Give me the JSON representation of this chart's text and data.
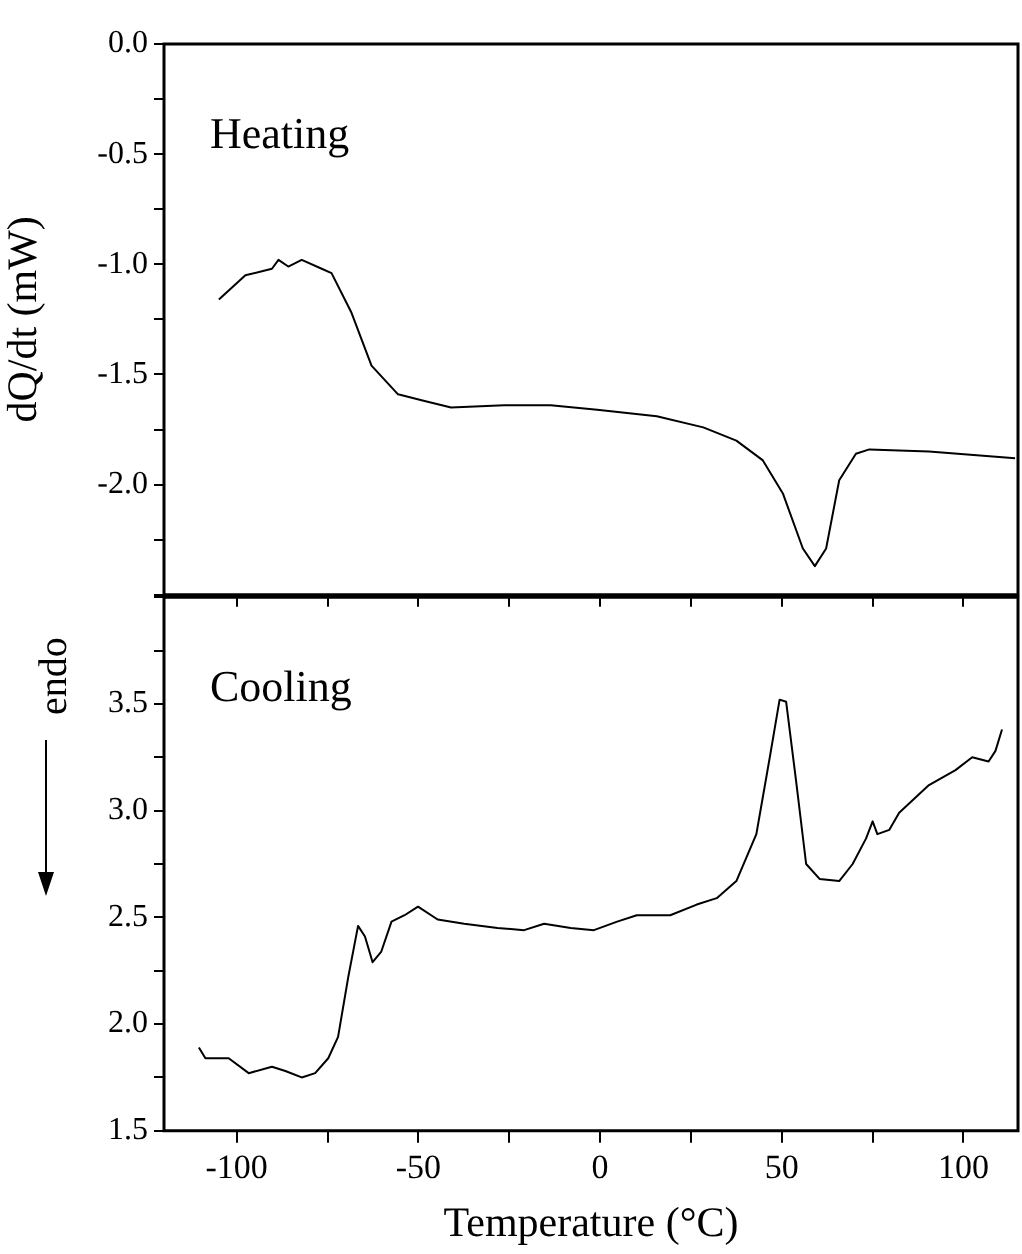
{
  "chart_data": [
    {
      "type": "line",
      "ylabel": "dQ/dt (mW)",
      "annotations": [
        "Heating"
      ],
      "x": [
        -104.9,
        -97.6,
        -90.3,
        -88.5,
        -85.8,
        -82.1,
        -76.6,
        -73.9,
        -68.4,
        -62.9,
        -55.6,
        -48.3,
        -41.0,
        -26.4,
        -13.6,
        -0.8,
        15.6,
        28.4,
        37.5,
        44.8,
        50.3,
        55.8,
        59.1,
        62.2,
        65.8,
        70.4,
        74.1,
        90.5,
        114.2
      ],
      "series": [
        {
          "color": "#000000",
          "values": [
            -1.16,
            -1.05,
            -1.02,
            -0.98,
            -1.01,
            -0.98,
            -1.02,
            -1.04,
            -1.22,
            -1.46,
            -1.59,
            -1.62,
            -1.65,
            -1.64,
            -1.64,
            -1.66,
            -1.69,
            -1.74,
            -1.8,
            -1.89,
            -2.04,
            -2.29,
            -2.37,
            -2.29,
            -1.98,
            -1.86,
            -1.84,
            -1.85,
            -1.88
          ]
        }
      ],
      "xlim": [
        -120,
        115
      ],
      "xticks": [
        -100,
        {
          "value": -75,
          "label": null
        },
        -50,
        {
          "value": -25,
          "label": null
        },
        0,
        {
          "value": 25,
          "label": null
        },
        50,
        {
          "value": 75,
          "label": null
        },
        100
      ],
      "ylim": [
        -2.5,
        0
      ],
      "yticks": [
        {
          "value": -2.5,
          "label": null
        },
        {
          "value": -2.25,
          "label": null
        },
        {
          "value": -2,
          "label": "-2.0"
        },
        {
          "value": -1.75,
          "label": null
        },
        {
          "value": -1.5,
          "label": "-1.5"
        },
        {
          "value": -1.25,
          "label": null
        },
        {
          "value": -1,
          "label": "-1.0"
        },
        {
          "value": -0.75,
          "label": null
        },
        {
          "value": -0.5,
          "label": "-0.5"
        },
        {
          "value": -0.25,
          "label": null
        },
        {
          "value": 0,
          "label": "0.0"
        }
      ],
      "tick_labels": "y",
      "grid": false,
      "legend": false,
      "marker": "none",
      "line_style": "solid"
    },
    {
      "type": "line",
      "ylabel": "endo",
      "xlabel": "Temperature (°C)",
      "annotations": [
        "Cooling"
      ],
      "x": [
        -110.4,
        -108.6,
        -102.2,
        -96.7,
        -90.3,
        -86.6,
        -82.1,
        -78.4,
        -74.8,
        -72.1,
        -69.3,
        -66.6,
        -64.7,
        -62.6,
        -60.2,
        -57.4,
        -53.8,
        -50.1,
        -44.7,
        -37.4,
        -28.2,
        -20.9,
        -15.4,
        -8.1,
        -1.7,
        4.7,
        10.1,
        19.3,
        26.6,
        32.1,
        37.5,
        43.0,
        46.7,
        49.4,
        51.2,
        54.0,
        56.7,
        60.4,
        65.8,
        69.5,
        73.2,
        75.0,
        76.3,
        79.6,
        82.3,
        90.5,
        97.8,
        102.4,
        106.9,
        108.8,
        110.6
      ],
      "series": [
        {
          "color": "#000000",
          "values": [
            1.89,
            1.84,
            1.84,
            1.77,
            1.8,
            1.78,
            1.75,
            1.77,
            1.84,
            1.94,
            2.22,
            2.46,
            2.41,
            2.29,
            2.34,
            2.48,
            2.51,
            2.55,
            2.49,
            2.47,
            2.45,
            2.44,
            2.47,
            2.45,
            2.44,
            2.48,
            2.51,
            2.51,
            2.56,
            2.59,
            2.67,
            2.89,
            3.25,
            3.52,
            3.51,
            3.13,
            2.75,
            2.68,
            2.67,
            2.75,
            2.87,
            2.95,
            2.89,
            2.91,
            2.99,
            3.12,
            3.19,
            3.25,
            3.23,
            3.28,
            3.38
          ]
        }
      ],
      "xlim": [
        -120,
        115
      ],
      "xticks": [
        -100,
        {
          "value": -75,
          "label": null
        },
        -50,
        {
          "value": -25,
          "label": null
        },
        0,
        {
          "value": 25,
          "label": null
        },
        50,
        {
          "value": 75,
          "label": null
        },
        100
      ],
      "ylim": [
        1.5,
        4.0
      ],
      "yticks": [
        {
          "value": 1.5,
          "label": "1.5"
        },
        {
          "value": 1.75,
          "label": null
        },
        {
          "value": 2,
          "label": "2.0"
        },
        {
          "value": 2.25,
          "label": null
        },
        {
          "value": 2.5,
          "label": "2.5"
        },
        {
          "value": 2.75,
          "label": null
        },
        {
          "value": 3,
          "label": "3.0"
        },
        {
          "value": 3.25,
          "label": null
        },
        {
          "value": 3.5,
          "label": "3.5"
        },
        {
          "value": 3.75,
          "label": null
        },
        {
          "value": 4,
          "label": null
        }
      ],
      "grid": false,
      "legend": false,
      "marker": "none",
      "line_style": "solid"
    }
  ]
}
